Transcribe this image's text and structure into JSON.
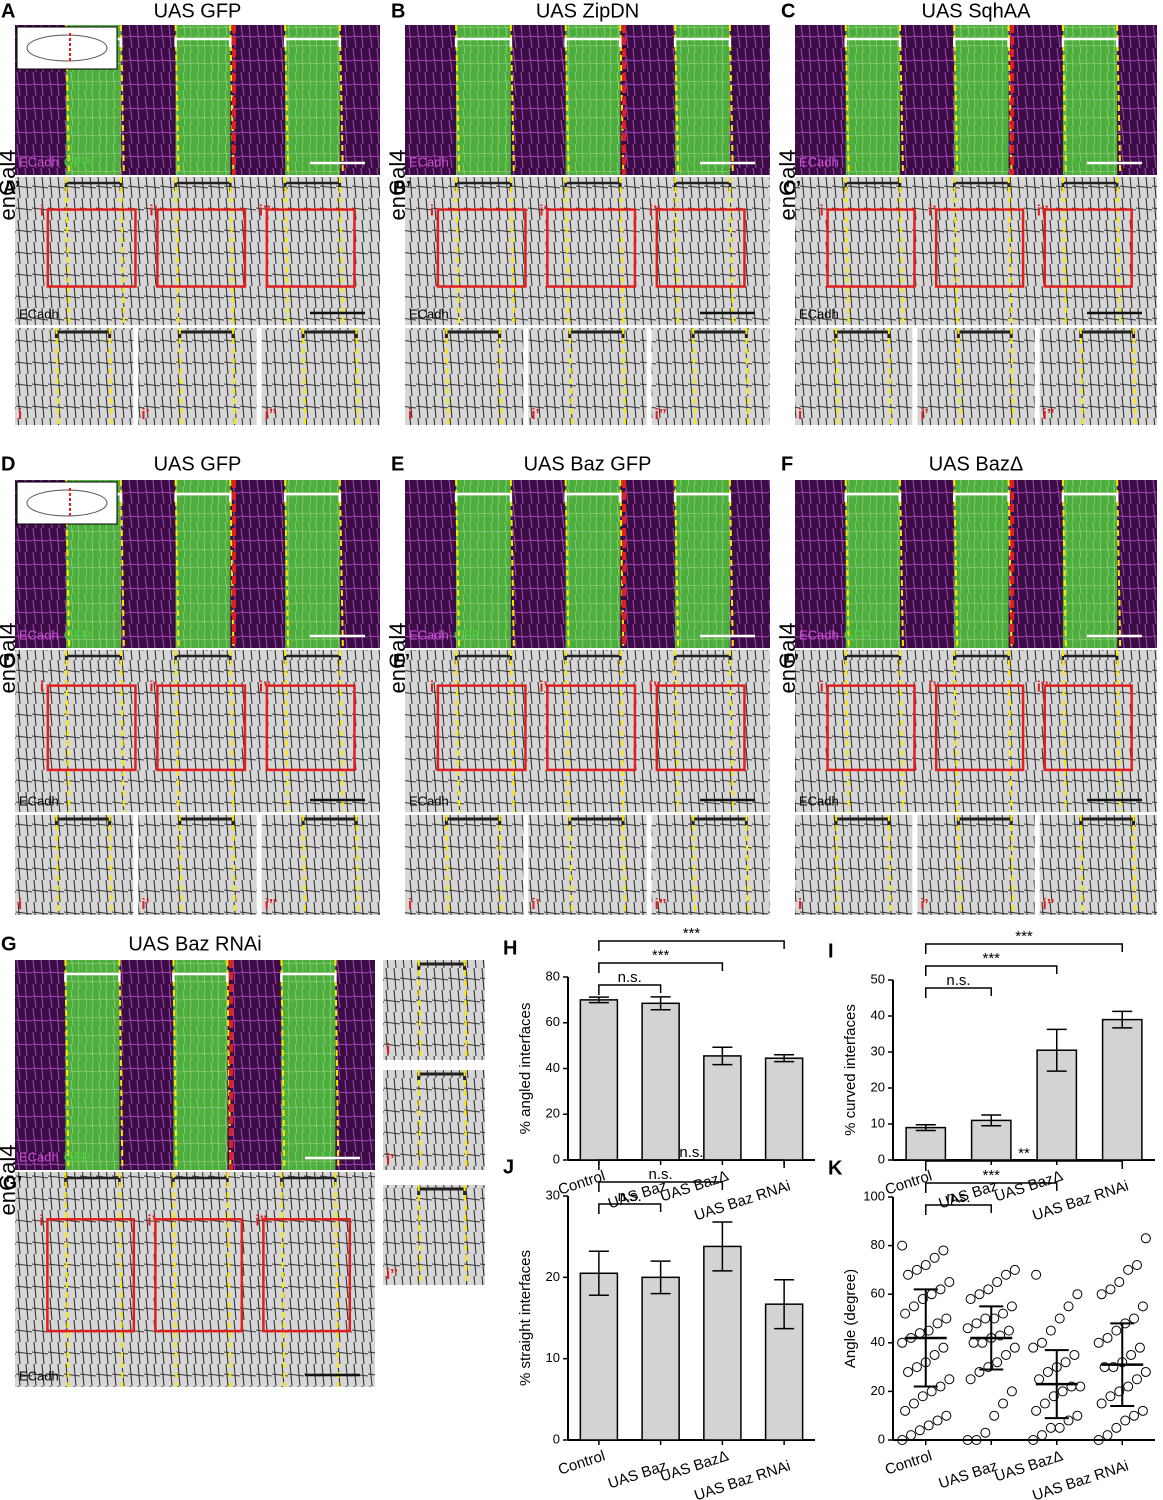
{
  "images": [
    {
      "letter": "A",
      "title": "UAS GFP",
      "side_label": "enGal4",
      "prime": "A’",
      "stains": [
        "ECadh",
        "GFP"
      ],
      "gray_stain": "ECadh",
      "insets": [
        "i",
        "i’",
        "i’’"
      ],
      "embryo_icon": true
    },
    {
      "letter": "B",
      "title": "UAS ZipDN",
      "side_label": "enGal4",
      "prime": "B’",
      "stains": [
        "ECadh"
      ],
      "gray_stain": "ECadh",
      "insets": [
        "i",
        "i’",
        "i’’"
      ],
      "embryo_icon": false
    },
    {
      "letter": "C",
      "title": "UAS SqhAA",
      "side_label": "enGal4",
      "prime": "C’",
      "stains": [
        "ECadh"
      ],
      "gray_stain": "ECadh",
      "insets": [
        "i",
        "i’",
        "i’’"
      ],
      "embryo_icon": false
    },
    {
      "letter": "D",
      "title": "UAS GFP",
      "side_label": "enGal4",
      "prime": "D’",
      "stains": [
        "ECadh",
        "GFP"
      ],
      "gray_stain": "ECadh",
      "insets": [
        "i",
        "i’",
        "i’’"
      ],
      "embryo_icon": true
    },
    {
      "letter": "E",
      "title": "UAS Baz GFP",
      "side_label": "enGal4",
      "prime": "E’",
      "stains": [
        "ECadh",
        "GFP"
      ],
      "gray_stain": "ECadh",
      "insets": [
        "i",
        "i’",
        "i’’"
      ],
      "embryo_icon": false
    },
    {
      "letter": "F",
      "title": "UAS BazΔ",
      "side_label": "enGal4",
      "prime": "F’",
      "stains": [
        "ECadh",
        "GFP"
      ],
      "gray_stain": "ECadh",
      "insets": [
        "i",
        "i’",
        "i’’"
      ],
      "embryo_icon": false
    },
    {
      "letter": "G",
      "title": "UAS Baz RNAi",
      "side_label": "enGal4",
      "prime": "G’",
      "stains": [
        "ECadh",
        "GFP"
      ],
      "gray_stain": "ECadh",
      "insets": [
        "i",
        "i’",
        "i’’"
      ],
      "embryo_icon": false
    }
  ],
  "chart_data": [
    {
      "type": "bar",
      "letter": "H",
      "ylabel": "% angled interfaces",
      "categories": [
        "Control",
        "UAS Baz",
        "UAS BazΔ",
        "UAS Baz RNAi"
      ],
      "values": [
        70,
        68.5,
        45.5,
        44.5
      ],
      "errors": [
        1.2,
        2.8,
        3.8,
        1.5
      ],
      "color": "#d3d3d3",
      "ylim": [
        0,
        80
      ],
      "yticks": [
        0,
        20,
        40,
        60,
        80
      ],
      "annotations": [
        {
          "text": "n.s.",
          "between": [
            "Control",
            "UAS Baz"
          ]
        },
        {
          "text": "***",
          "between": [
            "Control",
            "UAS BazΔ"
          ]
        },
        {
          "text": "***",
          "between": [
            "Control",
            "UAS Baz RNAi"
          ]
        }
      ]
    },
    {
      "type": "bar",
      "letter": "I",
      "ylabel": "% curved interfaces",
      "categories": [
        "Control",
        "UAS Baz",
        "UAS BazΔ",
        "UAS Baz RNAi"
      ],
      "values": [
        9,
        11,
        30.5,
        39
      ],
      "errors": [
        0.8,
        1.5,
        5.8,
        2.3
      ],
      "color": "#d3d3d3",
      "ylim": [
        0,
        50
      ],
      "yticks": [
        0,
        10,
        20,
        30,
        40,
        50
      ],
      "annotations": [
        {
          "text": "n.s.",
          "between": [
            "Control",
            "UAS Baz"
          ]
        },
        {
          "text": "***",
          "between": [
            "Control",
            "UAS BazΔ"
          ]
        },
        {
          "text": "***",
          "between": [
            "Control",
            "UAS Baz RNAi"
          ]
        }
      ]
    },
    {
      "type": "bar",
      "letter": "J",
      "ylabel": "% straight interfaces",
      "categories": [
        "Control",
        "UAS Baz",
        "UAS BazΔ",
        "UAS Baz RNAi"
      ],
      "values": [
        20.5,
        20,
        23.8,
        16.7
      ],
      "errors": [
        2.7,
        2,
        3,
        3
      ],
      "color": "#d3d3d3",
      "ylim": [
        0,
        30
      ],
      "yticks": [
        0,
        10,
        20,
        30
      ],
      "annotations": [
        {
          "text": "n.s.",
          "between": [
            "Control",
            "UAS Baz"
          ]
        },
        {
          "text": "n.s.",
          "between": [
            "Control",
            "UAS BazΔ"
          ]
        },
        {
          "text": "n.s.",
          "between": [
            "Control",
            "UAS Baz RNAi"
          ]
        }
      ]
    },
    {
      "type": "dot",
      "letter": "K",
      "ylabel": "Angle (degree)",
      "categories": [
        "Control",
        "UAS Baz",
        "UAS BazΔ",
        "UAS Baz RNAi"
      ],
      "points": [
        [
          0,
          2,
          4,
          6,
          8,
          10,
          12,
          15,
          18,
          20,
          22,
          25,
          28,
          30,
          32,
          35,
          38,
          40,
          42,
          44,
          45,
          48,
          50,
          52,
          55,
          58,
          60,
          62,
          65,
          68,
          70,
          72,
          75,
          78,
          80
        ],
        [
          0,
          0,
          3,
          10,
          15,
          20,
          25,
          28,
          30,
          32,
          35,
          38,
          40,
          40,
          42,
          43,
          45,
          46,
          48,
          50,
          50,
          52,
          55,
          58,
          60,
          62,
          65,
          68,
          70
        ],
        [
          0,
          2,
          5,
          5,
          8,
          10,
          12,
          15,
          18,
          20,
          22,
          22,
          25,
          28,
          30,
          32,
          35,
          38,
          40,
          45,
          50,
          55,
          60,
          68
        ],
        [
          0,
          2,
          5,
          8,
          10,
          12,
          15,
          18,
          20,
          22,
          25,
          28,
          30,
          30,
          32,
          35,
          38,
          40,
          42,
          45,
          48,
          50,
          55,
          60,
          62,
          65,
          70,
          72,
          83
        ]
      ],
      "means": [
        42,
        42,
        23,
        31
      ],
      "sds": [
        20,
        13,
        14,
        17
      ],
      "ylim": [
        0,
        100
      ],
      "yticks": [
        0,
        20,
        40,
        60,
        80,
        100
      ],
      "annotations": [
        {
          "text": "n.s.",
          "between": [
            "Control",
            "UAS Baz"
          ]
        },
        {
          "text": "***",
          "between": [
            "Control",
            "UAS BazΔ"
          ]
        },
        {
          "text": "**",
          "between": [
            "Control",
            "UAS Baz RNAi"
          ]
        }
      ]
    }
  ]
}
